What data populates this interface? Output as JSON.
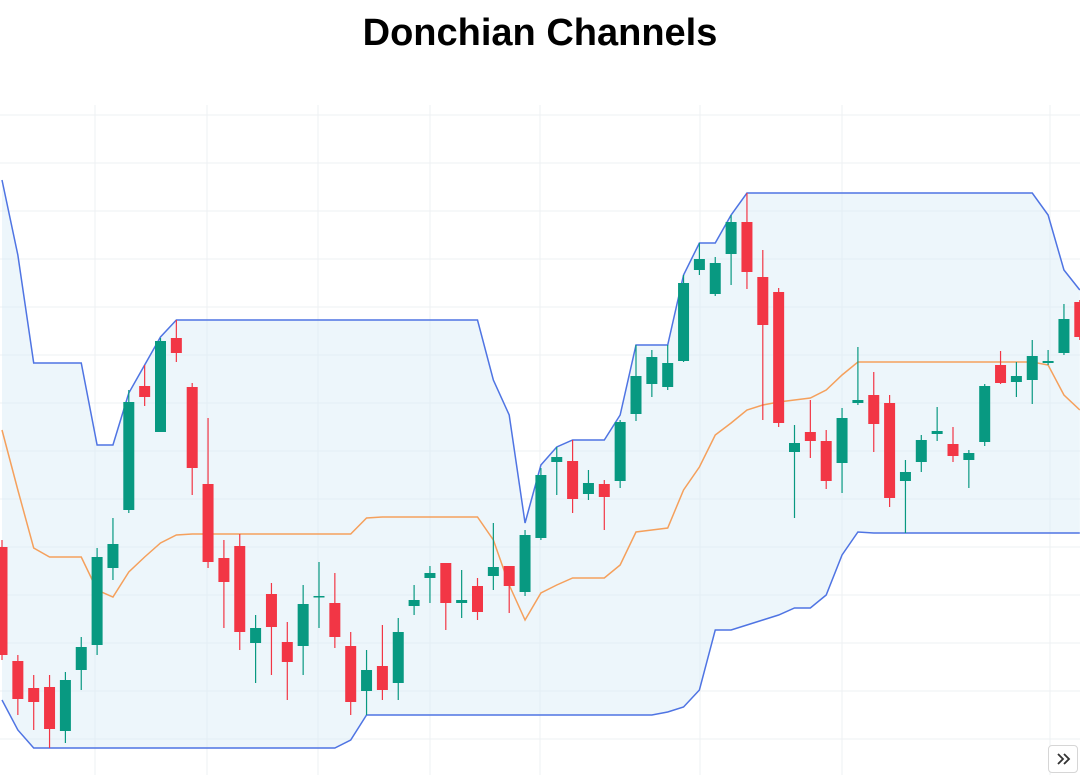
{
  "chart_data": {
    "type": "candlestick",
    "title": "Donchian Channels",
    "ylim": [
      0,
      675
    ],
    "grid": true,
    "up_color": "#089981",
    "down_color": "#f23645",
    "open": [
      228,
      114,
      87,
      88,
      44,
      105,
      130,
      207,
      265,
      389,
      343,
      437,
      388,
      291,
      217,
      229,
      132,
      181,
      133,
      129,
      178,
      172,
      129,
      84,
      109,
      92,
      169,
      197,
      212,
      172,
      189,
      199,
      209,
      183,
      237,
      313,
      314,
      281,
      291,
      294,
      361,
      391,
      388,
      414,
      505,
      481,
      521,
      553,
      498,
      483,
      323,
      343,
      334,
      312,
      372,
      380,
      372,
      294,
      313,
      341,
      331,
      315,
      333,
      410,
      393,
      395,
      412,
      422,
      473
    ],
    "high": [
      235,
      120,
      100,
      100,
      103,
      138,
      227,
      257,
      385,
      410,
      437,
      455,
      392,
      357,
      235,
      241,
      160,
      192,
      153,
      190,
      213,
      202,
      143,
      125,
      150,
      157,
      190,
      209,
      212,
      205,
      197,
      252,
      209,
      245,
      307,
      328,
      335,
      305,
      295,
      355,
      430,
      425,
      430,
      500,
      532,
      518,
      560,
      582,
      525,
      487,
      350,
      375,
      345,
      367,
      428,
      403,
      380,
      315,
      340,
      368,
      348,
      325,
      391,
      424,
      413,
      435,
      425,
      471,
      475
    ],
    "low": [
      115,
      60,
      45,
      27,
      32,
      85,
      120,
      195,
      262,
      369,
      343,
      413,
      280,
      207,
      147,
      125,
      92,
      100,
      75,
      100,
      147,
      127,
      60,
      60,
      75,
      75,
      160,
      172,
      145,
      157,
      155,
      185,
      162,
      179,
      235,
      280,
      262,
      275,
      245,
      287,
      354,
      378,
      385,
      413,
      500,
      479,
      490,
      486,
      355,
      348,
      257,
      317,
      286,
      282,
      370,
      323,
      268,
      242,
      303,
      334,
      313,
      287,
      329,
      391,
      378,
      371,
      410,
      420,
      435
    ],
    "close": [
      120,
      76,
      73,
      46,
      95,
      128,
      218,
      231,
      373,
      378,
      434,
      422,
      307,
      213,
      193,
      143,
      147,
      148,
      113,
      171,
      179,
      138,
      73,
      105,
      85,
      143,
      175,
      202,
      172,
      175,
      163,
      208,
      189,
      240,
      300,
      318,
      276,
      292,
      278,
      353,
      399,
      418,
      412,
      492,
      516,
      512,
      553,
      503,
      450,
      352,
      332,
      334,
      294,
      357,
      375,
      351,
      277,
      303,
      335,
      344,
      319,
      322,
      389,
      392,
      399,
      419,
      414,
      456,
      438
    ],
    "overlays": [
      {
        "color": "#4f74e3",
        "values": [
          595,
          520,
          412,
          412,
          412,
          412,
          330,
          330,
          382,
          410,
          438,
          455,
          455,
          455,
          455,
          455,
          455,
          455,
          455,
          455,
          455,
          455,
          455,
          455,
          455,
          455,
          455,
          455,
          455,
          455,
          455,
          395,
          360,
          252,
          310,
          328,
          335,
          335,
          335,
          360,
          430,
          430,
          430,
          500,
          532,
          532,
          560,
          582,
          582,
          582,
          582,
          582,
          582,
          582,
          582,
          582,
          582,
          582,
          582,
          582,
          582,
          582,
          582,
          582,
          582,
          582,
          560,
          505,
          485
        ]
      },
      {
        "color": "#f5a05c",
        "values": [
          345,
          285,
          227,
          218,
          218,
          218,
          185,
          178,
          203,
          218,
          232,
          240,
          241,
          241,
          241,
          241,
          241,
          241,
          241,
          241,
          241,
          241,
          241,
          257,
          258,
          258,
          258,
          258,
          258,
          258,
          258,
          235,
          190,
          155,
          182,
          190,
          197,
          197,
          197,
          210,
          243,
          245,
          247,
          285,
          308,
          340,
          352,
          365,
          370,
          373,
          375,
          377,
          385,
          400,
          413,
          413,
          413,
          413,
          413,
          413,
          413,
          413,
          413,
          413,
          413,
          413,
          410,
          380,
          365
        ]
      },
      {
        "color": "#4f74e3",
        "values": [
          75,
          45,
          27,
          27,
          27,
          27,
          27,
          27,
          27,
          27,
          27,
          27,
          27,
          27,
          27,
          27,
          27,
          27,
          27,
          27,
          27,
          27,
          35,
          60,
          60,
          60,
          60,
          60,
          60,
          60,
          60,
          60,
          60,
          60,
          60,
          60,
          60,
          60,
          60,
          60,
          60,
          60,
          63,
          68,
          85,
          145,
          145,
          150,
          155,
          160,
          167,
          167,
          180,
          220,
          243,
          242,
          242,
          242,
          242,
          242,
          242,
          242,
          242,
          242,
          242,
          242,
          242,
          242,
          242
        ]
      }
    ],
    "band_fill": "rgba(215,234,246,0.45)"
  }
}
